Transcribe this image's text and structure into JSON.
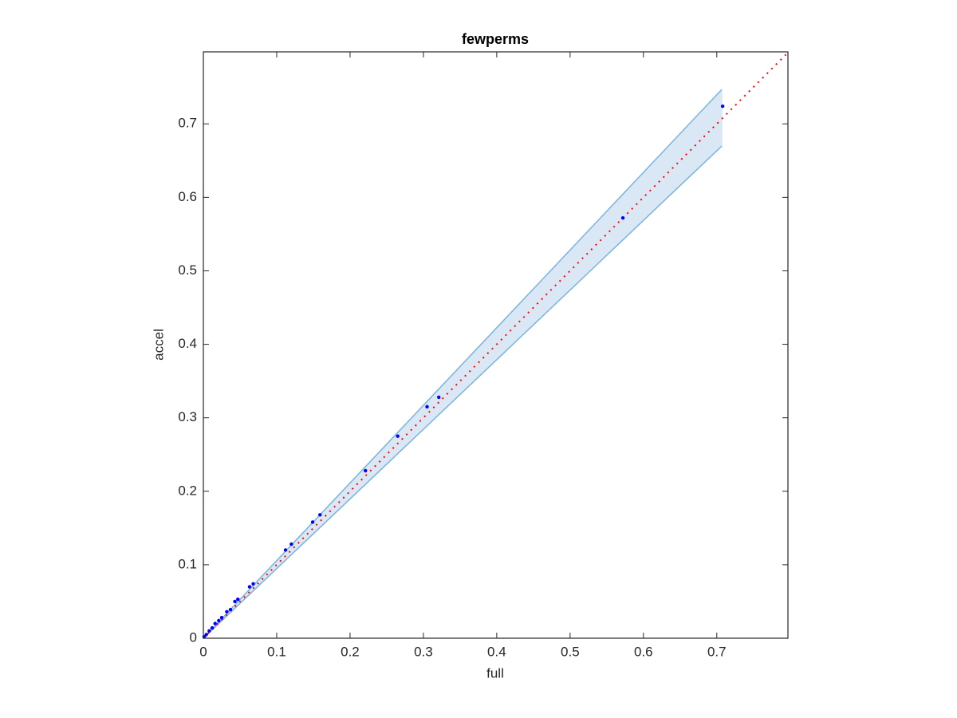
{
  "chart_data": {
    "type": "scatter",
    "title": "fewperms",
    "x_label": "full",
    "y_label": "accel",
    "xlim": [
      0,
      0.797
    ],
    "ylim": [
      0,
      0.798
    ],
    "xticks": [
      0,
      0.1,
      0.2,
      0.3,
      0.4,
      0.5,
      0.6,
      0.7
    ],
    "yticks": [
      0,
      0.1,
      0.2,
      0.3,
      0.4,
      0.5,
      0.6,
      0.7
    ],
    "color": "#0000ff",
    "x": [
      0.708,
      0.572,
      0.321,
      0.305,
      0.265,
      0.221,
      0.159,
      0.149,
      0.12,
      0.112,
      0.068,
      0.063,
      0.047,
      0.043,
      0.037,
      0.032,
      0.025,
      0.021,
      0.016,
      0.012,
      0.008,
      0.004,
      0.001
    ],
    "values": [
      0.724,
      0.572,
      0.328,
      0.315,
      0.275,
      0.228,
      0.168,
      0.158,
      0.128,
      0.12,
      0.074,
      0.07,
      0.053,
      0.05,
      0.039,
      0.036,
      0.028,
      0.024,
      0.02,
      0.014,
      0.01,
      0.005,
      0.002
    ],
    "band": {
      "x": [
        0,
        0.707
      ],
      "upper": [
        0,
        0.747
      ],
      "lower": [
        0,
        0.67
      ],
      "color": "#7ab3dc",
      "fill": "#dae8f5"
    },
    "reference_line": {
      "x": [
        0,
        0.797
      ],
      "y": [
        0,
        0.797
      ],
      "color": "#ff0000"
    }
  }
}
